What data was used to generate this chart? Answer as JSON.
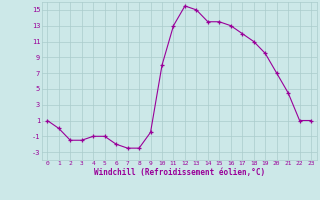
{
  "x": [
    0,
    1,
    2,
    3,
    4,
    5,
    6,
    7,
    8,
    9,
    10,
    11,
    12,
    13,
    14,
    15,
    16,
    17,
    18,
    19,
    20,
    21,
    22,
    23
  ],
  "y": [
    1,
    0,
    -1.5,
    -1.5,
    -1,
    -1,
    -2,
    -2.5,
    -2.5,
    -0.5,
    8,
    13,
    15.5,
    15,
    13.5,
    13.5,
    13,
    12,
    11,
    9.5,
    7,
    4.5,
    1,
    1
  ],
  "xlabel": "Windchill (Refroidissement éolien,°C)",
  "line_color": "#990099",
  "marker": "+",
  "bg_color": "#cce8e8",
  "grid_color": "#aacccc",
  "ylim": [
    -4,
    16
  ],
  "yticks": [
    -3,
    -1,
    1,
    3,
    5,
    7,
    9,
    11,
    13,
    15
  ],
  "xlim": [
    -0.5,
    23.5
  ],
  "xticks": [
    0,
    1,
    2,
    3,
    4,
    5,
    6,
    7,
    8,
    9,
    10,
    11,
    12,
    13,
    14,
    15,
    16,
    17,
    18,
    19,
    20,
    21,
    22,
    23
  ]
}
